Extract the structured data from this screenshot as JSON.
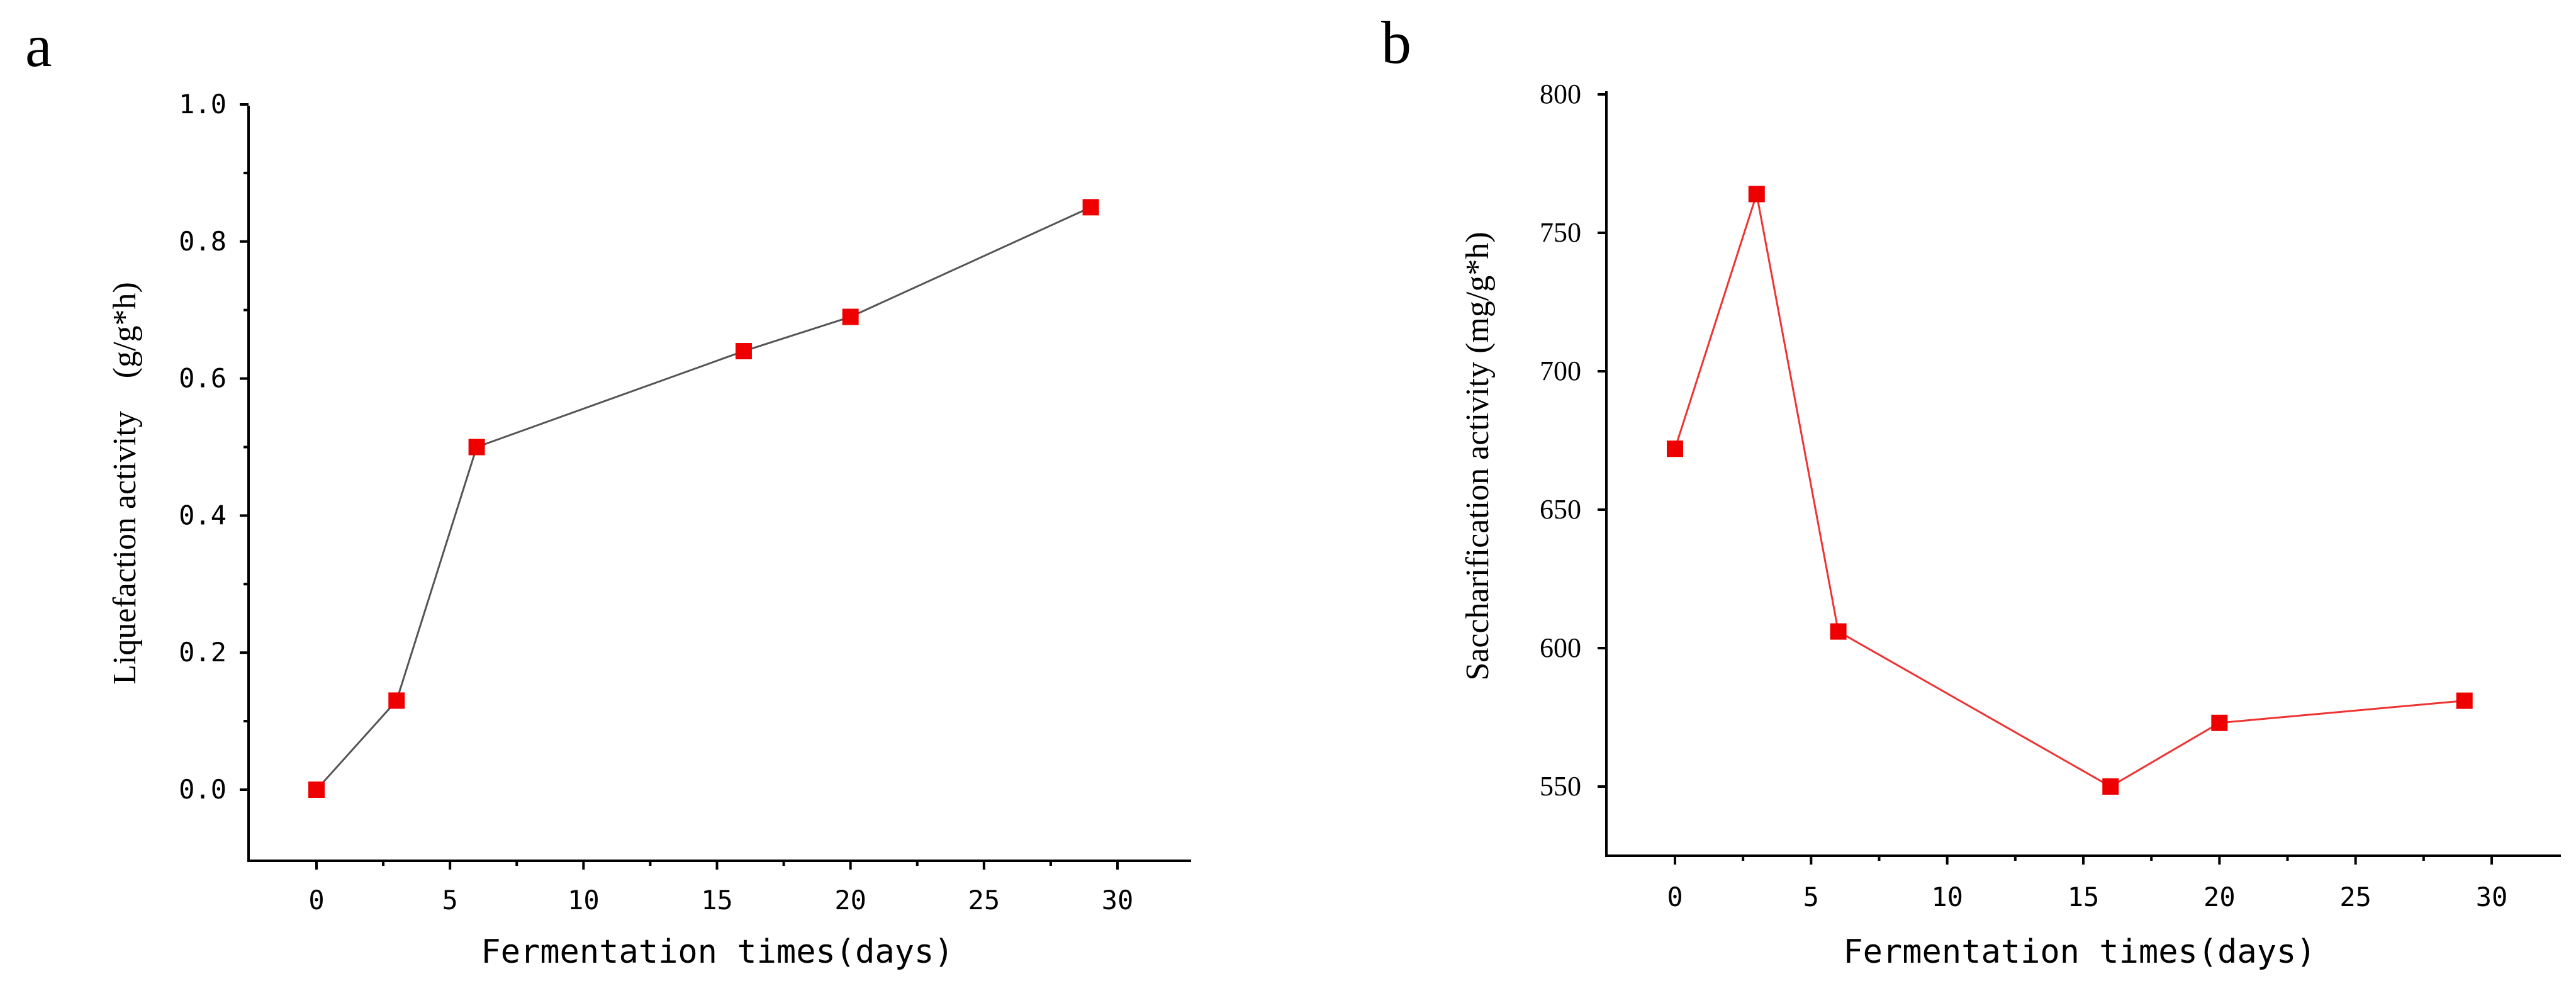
{
  "chart_data": [
    {
      "panel_label": "a",
      "type": "line",
      "marker": "square",
      "xlabel": "Fermentation times(days)",
      "ylabel": "Liquefaction activity　(g/g*h)",
      "xlim": [
        -2.5,
        32.5
      ],
      "ylim": [
        -0.1,
        1.0
      ],
      "xticks": [
        0,
        5,
        10,
        15,
        20,
        25,
        30
      ],
      "xtick_labels": [
        "0",
        "5",
        "10",
        "15",
        "20",
        "25",
        "30"
      ],
      "yticks": [
        0.0,
        0.2,
        0.4,
        0.6,
        0.8,
        1.0
      ],
      "ytick_labels": [
        "0.0",
        "0.2",
        "0.4",
        "0.6",
        "0.8",
        "1.0"
      ],
      "x": [
        0,
        3,
        6,
        16,
        20,
        29
      ],
      "y": [
        0.0,
        0.13,
        0.5,
        0.64,
        0.69,
        0.85
      ],
      "line_color": "#555555",
      "marker_color": "#ee0000",
      "grid": false
    },
    {
      "panel_label": "b",
      "type": "line",
      "marker": "square",
      "xlabel": "Fermentation times(days)",
      "ylabel": "Saccharification activity (mg/g*h)",
      "xlim": [
        -2.5,
        32.5
      ],
      "ylim": [
        525,
        800
      ],
      "xticks": [
        0,
        5,
        10,
        15,
        20,
        25,
        30
      ],
      "xtick_labels": [
        "0",
        "5",
        "10",
        "15",
        "20",
        "25",
        "30"
      ],
      "yticks": [
        550,
        600,
        650,
        700,
        750,
        800
      ],
      "ytick_labels": [
        "550",
        "600",
        "650",
        "700",
        "750",
        "800"
      ],
      "x": [
        0,
        3,
        6,
        16,
        20,
        29
      ],
      "y": [
        672,
        764,
        606,
        550,
        573,
        581
      ],
      "line_color": "#ee3333",
      "marker_color": "#ee0000",
      "grid": false
    }
  ]
}
